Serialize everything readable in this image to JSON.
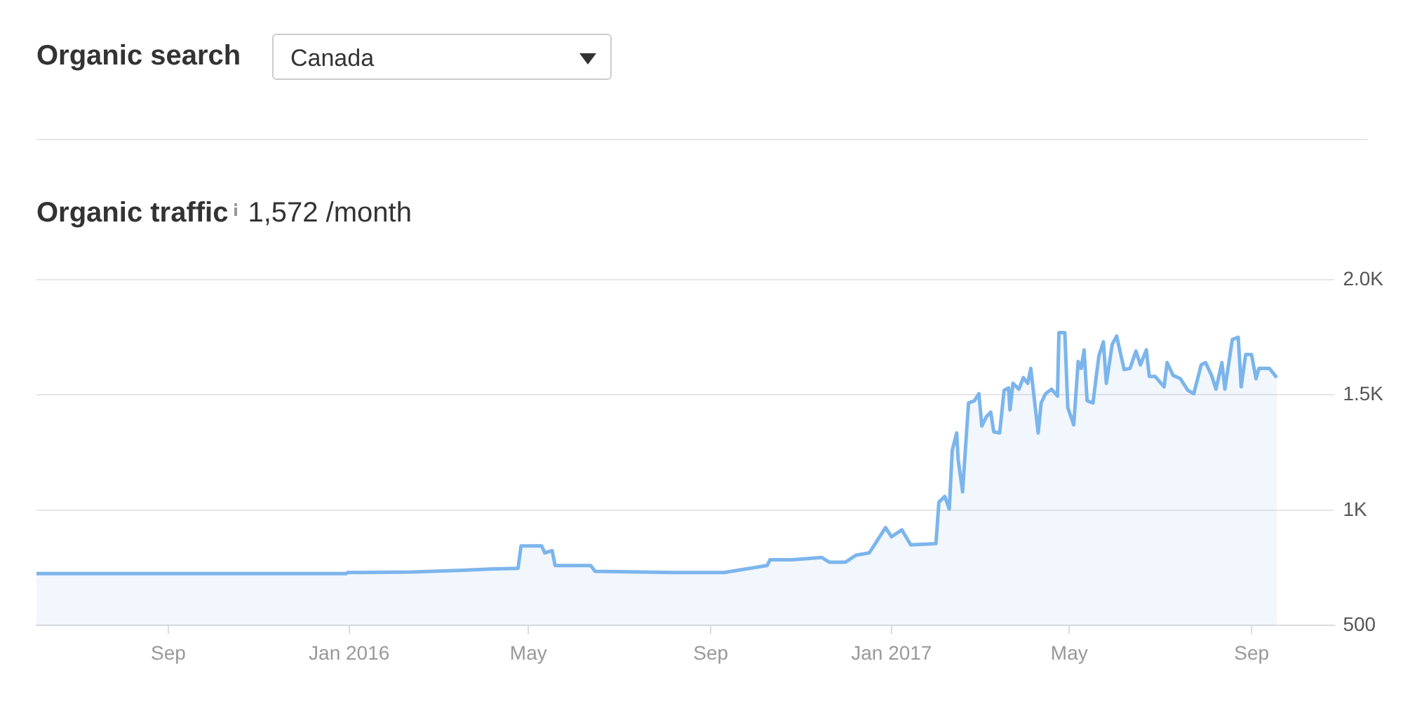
{
  "chart_data": {
    "type": "area",
    "title": "Organic traffic",
    "subtitle": "1,572 /month",
    "annotations": [
      "Organic search",
      "Canada"
    ],
    "x": [
      "2015-06-04",
      "2015-12-30",
      "2015-12-31",
      "2016-02-12",
      "2016-03-18",
      "2016-04-05",
      "2016-04-24",
      "2016-04-26",
      "2016-05-10",
      "2016-05-12",
      "2016-05-17",
      "2016-05-19",
      "2016-06-12",
      "2016-06-15",
      "2016-08-08",
      "2016-09-10",
      "2016-10-09",
      "2016-10-11",
      "2016-10-26",
      "2016-11-15",
      "2016-11-20",
      "2016-12-01",
      "2016-12-08",
      "2016-12-17",
      "2016-12-22",
      "2016-12-28",
      "2017-01-01",
      "2017-01-08",
      "2017-01-14",
      "2017-01-31",
      "2017-02-02",
      "2017-02-06",
      "2017-02-09",
      "2017-02-11",
      "2017-02-14",
      "2017-02-15",
      "2017-02-18",
      "2017-02-20",
      "2017-02-22",
      "2017-02-26",
      "2017-03-01",
      "2017-03-03",
      "2017-03-06",
      "2017-03-09",
      "2017-03-11",
      "2017-03-15",
      "2017-03-18",
      "2017-03-21",
      "2017-03-22",
      "2017-03-24",
      "2017-03-28",
      "2017-03-31",
      "2017-04-03",
      "2017-04-05",
      "2017-04-07",
      "2017-04-10",
      "2017-04-12",
      "2017-04-15",
      "2017-04-19",
      "2017-04-23",
      "2017-04-24",
      "2017-04-28",
      "2017-04-30",
      "2017-05-04",
      "2017-05-07",
      "2017-05-09",
      "2017-05-11",
      "2017-05-13",
      "2017-05-17",
      "2017-05-19",
      "2017-05-21",
      "2017-05-24",
      "2017-05-26",
      "2017-05-30",
      "2017-06-02",
      "2017-06-07",
      "2017-06-11",
      "2017-06-15",
      "2017-06-18",
      "2017-06-22",
      "2017-06-24",
      "2017-06-28",
      "2017-07-04",
      "2017-07-06",
      "2017-07-10",
      "2017-07-15",
      "2017-07-20",
      "2017-07-24",
      "2017-07-29",
      "2017-08-01",
      "2017-08-05",
      "2017-08-08",
      "2017-08-12",
      "2017-08-14",
      "2017-08-19",
      "2017-08-23",
      "2017-08-25",
      "2017-08-28",
      "2017-09-01",
      "2017-09-04",
      "2017-09-06",
      "2017-09-13",
      "2017-09-18"
    ],
    "series": [
      {
        "color": "#7cb5ec",
        "values": [
          725,
          725,
          730,
          732,
          740,
          745,
          748,
          845,
          845,
          815,
          825,
          760,
          760,
          735,
          730,
          730,
          760,
          785,
          785,
          795,
          775,
          775,
          805,
          815,
          865,
          925,
          885,
          915,
          850,
          855,
          1035,
          1060,
          1005,
          1260,
          1335,
          1220,
          1080,
          1275,
          1465,
          1475,
          1505,
          1365,
          1405,
          1425,
          1340,
          1335,
          1520,
          1530,
          1435,
          1550,
          1525,
          1575,
          1550,
          1615,
          1505,
          1335,
          1465,
          1505,
          1525,
          1495,
          1770,
          1770,
          1445,
          1370,
          1645,
          1615,
          1695,
          1475,
          1465,
          1570,
          1670,
          1730,
          1550,
          1720,
          1755,
          1610,
          1615,
          1690,
          1630,
          1695,
          1580,
          1580,
          1535,
          1640,
          1585,
          1570,
          1520,
          1505,
          1630,
          1640,
          1585,
          1525,
          1640,
          1525,
          1740,
          1750,
          1535,
          1675,
          1675,
          1570,
          1615,
          1615,
          1575
        ]
      }
    ],
    "xlim": [
      "2015-06-04",
      "2017-10-27"
    ],
    "xticks": [
      {
        "value": "2015-09",
        "label": "Sep"
      },
      {
        "value": "2016-01",
        "label": "Jan 2016"
      },
      {
        "value": "2016-05",
        "label": "May"
      },
      {
        "value": "2016-09",
        "label": "Sep"
      },
      {
        "value": "2017-01",
        "label": "Jan 2017"
      },
      {
        "value": "2017-05",
        "label": "May"
      },
      {
        "value": "2017-09",
        "label": "Sep"
      }
    ],
    "ylim": [
      500,
      2000
    ],
    "yticks": [
      {
        "value": 500,
        "label": "500"
      },
      {
        "value": 1000,
        "label": "1K"
      },
      {
        "value": 1500,
        "label": "1.5K"
      },
      {
        "value": 2000,
        "label": "2.0K"
      }
    ],
    "grid": "y",
    "legend": false,
    "marker": "none",
    "line_style": "solid"
  }
}
